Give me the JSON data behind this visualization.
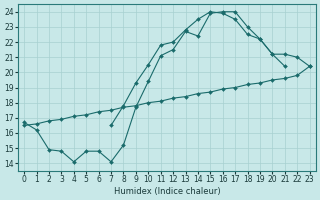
{
  "xlabel": "Humidex (Indice chaleur)",
  "xlim": [
    -0.5,
    23.5
  ],
  "ylim": [
    13.5,
    24.5
  ],
  "xticks": [
    0,
    1,
    2,
    3,
    4,
    5,
    6,
    7,
    8,
    9,
    10,
    11,
    12,
    13,
    14,
    15,
    16,
    17,
    18,
    19,
    20,
    21,
    22,
    23
  ],
  "yticks": [
    14,
    15,
    16,
    17,
    18,
    19,
    20,
    21,
    22,
    23,
    24
  ],
  "bg_color": "#c8e8e8",
  "line_color": "#1a6b6b",
  "grid_color": "#a8d0d0",
  "line1_x": [
    0,
    1,
    2,
    3,
    4,
    5,
    6,
    7,
    8,
    9,
    10,
    11,
    12,
    13,
    14,
    15,
    16,
    17,
    18,
    19,
    20,
    21
  ],
  "line1_y": [
    16.7,
    16.2,
    14.9,
    14.8,
    14.1,
    14.8,
    14.8,
    14.1,
    15.2,
    17.7,
    19.4,
    21.1,
    21.5,
    22.7,
    22.4,
    23.9,
    24.0,
    24.0,
    23.0,
    22.2,
    21.2,
    20.4
  ],
  "line2_x": [
    0,
    1,
    2,
    3,
    4,
    5,
    6,
    7,
    8,
    9,
    10,
    11,
    12,
    13,
    14,
    15,
    16,
    17,
    18,
    19,
    20,
    21,
    22,
    23
  ],
  "line2_y": [
    16.5,
    16.6,
    16.8,
    16.9,
    17.1,
    17.2,
    17.4,
    17.5,
    17.7,
    17.8,
    18.0,
    18.1,
    18.3,
    18.4,
    18.6,
    18.7,
    18.9,
    19.0,
    19.2,
    19.3,
    19.5,
    19.6,
    19.8,
    20.4
  ],
  "line3_x": [
    7,
    8,
    9,
    10,
    11,
    12,
    13,
    14,
    15,
    16,
    17,
    18,
    19,
    20,
    21,
    22,
    23
  ],
  "line3_y": [
    16.5,
    17.8,
    19.3,
    20.5,
    21.8,
    22.0,
    22.8,
    23.5,
    24.0,
    23.9,
    23.5,
    22.5,
    22.2,
    21.2,
    21.2,
    21.0,
    20.4
  ]
}
